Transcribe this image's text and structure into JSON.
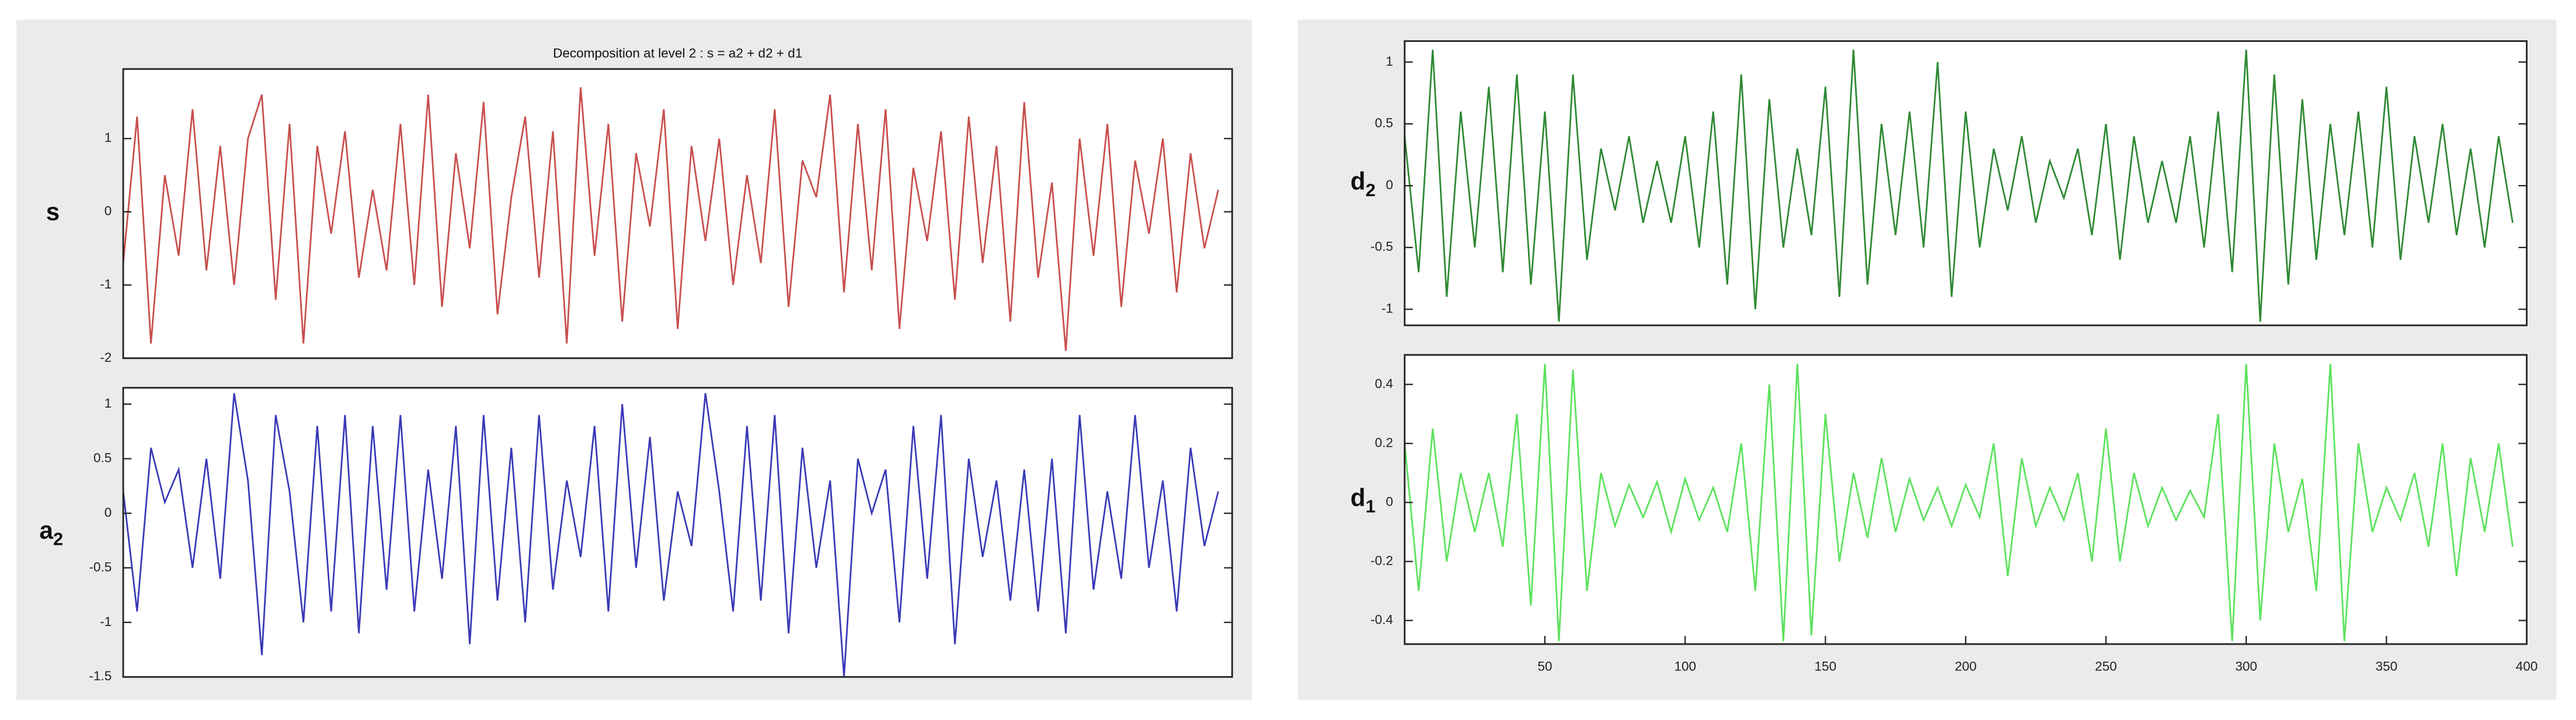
{
  "chart_data": [
    {
      "type": "line",
      "title": "Decomposition at level 2 : s = a2 + d2 + d1",
      "ylabel": "s",
      "xlim": [
        0,
        400
      ],
      "ylim": [
        -2,
        1.95
      ],
      "yticks": [
        -2,
        -1,
        0,
        1
      ],
      "series": [
        {
          "name": "s",
          "color": "#c8504e",
          "x": [
            0,
            5,
            10,
            15,
            20,
            25,
            30,
            35,
            40,
            45,
            50,
            55,
            60,
            65,
            70,
            75,
            80,
            85,
            90,
            95,
            100,
            105,
            110,
            115,
            120,
            125,
            130,
            135,
            140,
            145,
            150,
            155,
            160,
            165,
            170,
            175,
            180,
            185,
            190,
            195,
            200,
            205,
            210,
            215,
            220,
            225,
            230,
            235,
            240,
            245,
            250,
            255,
            260,
            265,
            270,
            275,
            280,
            285,
            290,
            295,
            300,
            305,
            310,
            315,
            320,
            325,
            330,
            335,
            340,
            345,
            350,
            355,
            360,
            365,
            370,
            375,
            380,
            385,
            390,
            395
          ],
          "values": [
            -0.7,
            1.3,
            -1.8,
            0.5,
            -0.6,
            1.4,
            -0.8,
            0.9,
            -1.0,
            1.0,
            1.6,
            -1.2,
            1.2,
            -1.8,
            0.9,
            -0.3,
            1.1,
            -0.9,
            0.3,
            -0.8,
            1.2,
            -1.0,
            1.6,
            -1.3,
            0.8,
            -0.5,
            1.5,
            -1.4,
            0.2,
            1.3,
            -0.9,
            1.1,
            -1.8,
            1.7,
            -0.6,
            1.2,
            -1.5,
            0.8,
            -0.2,
            1.4,
            -1.6,
            0.9,
            -0.4,
            1.0,
            -1.0,
            0.5,
            -0.7,
            1.4,
            -1.3,
            0.7,
            0.2,
            1.6,
            -1.1,
            1.2,
            -0.8,
            1.4,
            -1.6,
            0.6,
            -0.4,
            1.1,
            -1.2,
            1.3,
            -0.7,
            0.9,
            -1.5,
            1.5,
            -0.9,
            0.4,
            -1.9,
            1.0,
            -0.6,
            1.2,
            -1.3,
            0.7,
            -0.3,
            1.0,
            -1.1,
            0.8,
            -0.5,
            0.3
          ]
        }
      ]
    },
    {
      "type": "line",
      "ylabel": "a2",
      "xlim": [
        0,
        400
      ],
      "ylim": [
        -1.5,
        1.15
      ],
      "yticks": [
        -1.5,
        -1,
        -0.5,
        0,
        0.5,
        1
      ],
      "series": [
        {
          "name": "a2",
          "color": "#3a3ab8",
          "x": [
            0,
            5,
            10,
            15,
            20,
            25,
            30,
            35,
            40,
            45,
            50,
            55,
            60,
            65,
            70,
            75,
            80,
            85,
            90,
            95,
            100,
            105,
            110,
            115,
            120,
            125,
            130,
            135,
            140,
            145,
            150,
            155,
            160,
            165,
            170,
            175,
            180,
            185,
            190,
            195,
            200,
            205,
            210,
            215,
            220,
            225,
            230,
            235,
            240,
            245,
            250,
            255,
            260,
            265,
            270,
            275,
            280,
            285,
            290,
            295,
            300,
            305,
            310,
            315,
            320,
            325,
            330,
            335,
            340,
            345,
            350,
            355,
            360,
            365,
            370,
            375,
            380,
            385,
            390,
            395
          ],
          "values": [
            0.2,
            -0.9,
            0.6,
            0.1,
            0.4,
            -0.5,
            0.5,
            -0.6,
            1.1,
            0.3,
            -1.3,
            0.9,
            0.2,
            -1.0,
            0.8,
            -0.9,
            0.9,
            -1.1,
            0.8,
            -0.7,
            0.9,
            -0.9,
            0.4,
            -0.6,
            0.8,
            -1.2,
            0.9,
            -0.8,
            0.6,
            -1.0,
            0.9,
            -0.7,
            0.3,
            -0.4,
            0.8,
            -0.9,
            1.0,
            -0.5,
            0.7,
            -0.8,
            0.2,
            -0.3,
            1.1,
            0.2,
            -0.9,
            0.8,
            -0.8,
            0.9,
            -1.1,
            0.6,
            -0.5,
            0.3,
            -1.5,
            0.5,
            0.0,
            0.4,
            -1.0,
            0.8,
            -0.6,
            0.9,
            -1.2,
            0.5,
            -0.4,
            0.3,
            -0.8,
            0.4,
            -0.9,
            0.5,
            -1.1,
            0.9,
            -0.7,
            0.2,
            -0.6,
            0.9,
            -0.5,
            0.3,
            -0.9,
            0.6,
            -0.3,
            0.2
          ]
        }
      ]
    },
    {
      "type": "line",
      "ylabel": "d2",
      "xlim": [
        0,
        400
      ],
      "ylim": [
        -1.13,
        1.17
      ],
      "yticks": [
        -1,
        -0.5,
        0,
        0.5,
        1
      ],
      "series": [
        {
          "name": "d2",
          "color": "#2f8a33",
          "x": [
            0,
            5,
            10,
            15,
            20,
            25,
            30,
            35,
            40,
            45,
            50,
            55,
            60,
            65,
            70,
            75,
            80,
            85,
            90,
            95,
            100,
            105,
            110,
            115,
            120,
            125,
            130,
            135,
            140,
            145,
            150,
            155,
            160,
            165,
            170,
            175,
            180,
            185,
            190,
            195,
            200,
            205,
            210,
            215,
            220,
            225,
            230,
            235,
            240,
            245,
            250,
            255,
            260,
            265,
            270,
            275,
            280,
            285,
            290,
            295,
            300,
            305,
            310,
            315,
            320,
            325,
            330,
            335,
            340,
            345,
            350,
            355,
            360,
            365,
            370,
            375,
            380,
            385,
            390,
            395
          ],
          "values": [
            0.4,
            -0.7,
            1.1,
            -0.9,
            0.6,
            -0.5,
            0.8,
            -0.7,
            0.9,
            -0.8,
            0.6,
            -1.1,
            0.9,
            -0.6,
            0.3,
            -0.2,
            0.4,
            -0.3,
            0.2,
            -0.3,
            0.4,
            -0.5,
            0.6,
            -0.8,
            0.9,
            -1.0,
            0.7,
            -0.5,
            0.3,
            -0.4,
            0.8,
            -0.9,
            1.1,
            -0.8,
            0.5,
            -0.4,
            0.6,
            -0.5,
            1.0,
            -0.9,
            0.6,
            -0.5,
            0.3,
            -0.2,
            0.4,
            -0.3,
            0.2,
            -0.1,
            0.3,
            -0.4,
            0.5,
            -0.6,
            0.4,
            -0.3,
            0.2,
            -0.3,
            0.4,
            -0.5,
            0.6,
            -0.7,
            1.1,
            -1.1,
            0.9,
            -0.8,
            0.7,
            -0.6,
            0.5,
            -0.4,
            0.6,
            -0.5,
            0.8,
            -0.6,
            0.4,
            -0.3,
            0.5,
            -0.4,
            0.3,
            -0.5,
            0.4,
            -0.3
          ]
        }
      ]
    },
    {
      "type": "line",
      "ylabel": "d1",
      "xlim": [
        0,
        400
      ],
      "ylim": [
        -0.48,
        0.5
      ],
      "yticks": [
        -0.4,
        -0.2,
        0,
        0.2,
        0.4
      ],
      "xticks": [
        50,
        100,
        150,
        200,
        250,
        300,
        350,
        400
      ],
      "series": [
        {
          "name": "d1",
          "color": "#5de25d",
          "x": [
            0,
            5,
            10,
            15,
            20,
            25,
            30,
            35,
            40,
            45,
            50,
            55,
            60,
            65,
            70,
            75,
            80,
            85,
            90,
            95,
            100,
            105,
            110,
            115,
            120,
            125,
            130,
            135,
            140,
            145,
            150,
            155,
            160,
            165,
            170,
            175,
            180,
            185,
            190,
            195,
            200,
            205,
            210,
            215,
            220,
            225,
            230,
            235,
            240,
            245,
            250,
            255,
            260,
            265,
            270,
            275,
            280,
            285,
            290,
            295,
            300,
            305,
            310,
            315,
            320,
            325,
            330,
            335,
            340,
            345,
            350,
            355,
            360,
            365,
            370,
            375,
            380,
            385,
            390,
            395
          ],
          "values": [
            0.2,
            -0.3,
            0.25,
            -0.2,
            0.1,
            -0.1,
            0.1,
            -0.15,
            0.3,
            -0.35,
            0.47,
            -0.47,
            0.45,
            -0.3,
            0.1,
            -0.08,
            0.06,
            -0.05,
            0.07,
            -0.1,
            0.08,
            -0.06,
            0.05,
            -0.1,
            0.2,
            -0.3,
            0.4,
            -0.47,
            0.47,
            -0.45,
            0.3,
            -0.2,
            0.1,
            -0.12,
            0.15,
            -0.1,
            0.08,
            -0.06,
            0.05,
            -0.08,
            0.06,
            -0.05,
            0.2,
            -0.25,
            0.15,
            -0.08,
            0.05,
            -0.06,
            0.1,
            -0.2,
            0.25,
            -0.2,
            0.1,
            -0.08,
            0.05,
            -0.06,
            0.04,
            -0.05,
            0.3,
            -0.47,
            0.47,
            -0.4,
            0.2,
            -0.1,
            0.08,
            -0.3,
            0.47,
            -0.47,
            0.2,
            -0.1,
            0.05,
            -0.06,
            0.1,
            -0.15,
            0.2,
            -0.25,
            0.15,
            -0.1,
            0.2,
            -0.15
          ]
        }
      ]
    }
  ]
}
